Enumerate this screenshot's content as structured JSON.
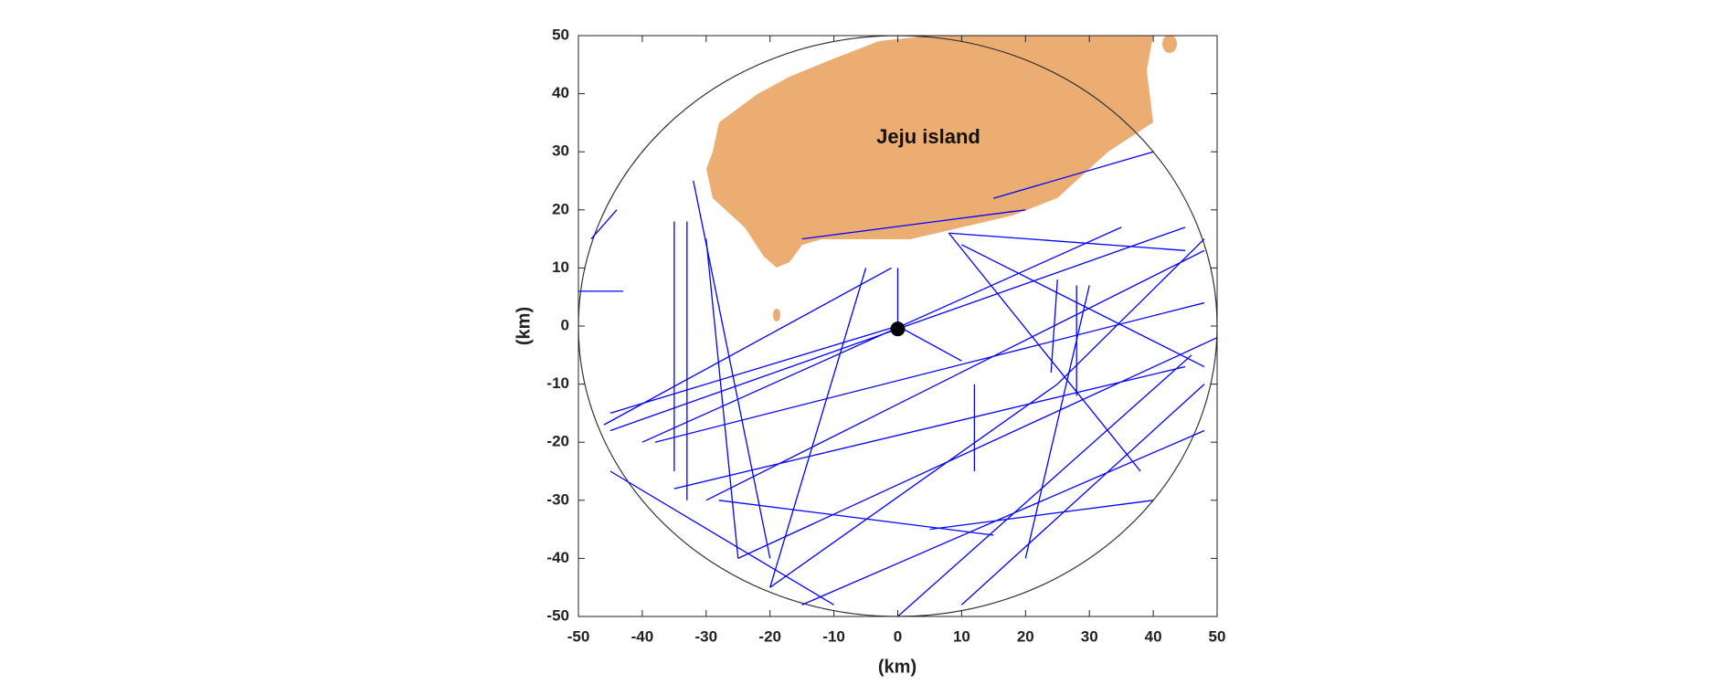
{
  "chart_data": {
    "type": "line",
    "xlabel": "(km)",
    "ylabel": "(km)",
    "annotation": "Jeju island",
    "xlim": [
      -50,
      50
    ],
    "ylim": [
      -50,
      50
    ],
    "xticks": [
      -50,
      -40,
      -30,
      -20,
      -10,
      0,
      10,
      20,
      30,
      40,
      50
    ],
    "yticks": [
      -50,
      -40,
      -30,
      -20,
      -10,
      0,
      10,
      20,
      30,
      40,
      50
    ],
    "radar": {
      "x": 0,
      "y": -0.5
    },
    "series": [
      {
        "color": "#0000ff",
        "x": [
          -46,
          -1
        ],
        "values": [
          -17,
          10
        ]
      },
      {
        "color": "#0000ff",
        "x": [
          -45,
          45
        ],
        "values": [
          -18,
          17
        ]
      },
      {
        "color": "#0000ff",
        "x": [
          -38,
          48
        ],
        "values": [
          -20,
          4
        ]
      },
      {
        "color": "#0000ff",
        "x": [
          -30,
          48
        ],
        "values": [
          -30,
          13
        ]
      },
      {
        "color": "#0000ff",
        "x": [
          -35,
          45
        ],
        "values": [
          -28,
          -7
        ]
      },
      {
        "color": "#0000ff",
        "x": [
          -25,
          50
        ],
        "values": [
          -40,
          -2
        ]
      },
      {
        "color": "#0000ff",
        "x": [
          -15,
          48
        ],
        "values": [
          -48,
          -18
        ]
      },
      {
        "color": "#0000ff",
        "x": [
          0,
          46
        ],
        "values": [
          -50,
          -5
        ]
      },
      {
        "color": "#0000ff",
        "x": [
          -20,
          25
        ],
        "values": [
          -45,
          -10
        ]
      },
      {
        "color": "#0000ff",
        "x": [
          8,
          38
        ],
        "values": [
          16,
          -25
        ]
      },
      {
        "color": "#0000ff",
        "x": [
          8,
          45
        ],
        "values": [
          16,
          13
        ]
      },
      {
        "color": "#0000ff",
        "x": [
          -32,
          -20
        ],
        "values": [
          25,
          -40
        ]
      },
      {
        "color": "#0000ff",
        "x": [
          -30,
          -25
        ],
        "values": [
          15,
          -40
        ]
      },
      {
        "color": "#0000ff",
        "x": [
          -33,
          -33
        ],
        "values": [
          18,
          -30
        ]
      },
      {
        "color": "#0000ff",
        "x": [
          -35,
          -35
        ],
        "values": [
          18,
          -25
        ]
      },
      {
        "color": "#0000ff",
        "x": [
          -5,
          -20
        ],
        "values": [
          10,
          -45
        ]
      },
      {
        "color": "#0000ff",
        "x": [
          0,
          0,
          10
        ],
        "values": [
          10,
          0,
          -6
        ]
      },
      {
        "color": "#0000ff",
        "x": [
          -45,
          0
        ],
        "values": [
          -15,
          0
        ]
      },
      {
        "color": "#0000ff",
        "x": [
          -40,
          35
        ],
        "values": [
          -20,
          17
        ]
      },
      {
        "color": "#0000ff",
        "x": [
          30,
          20
        ],
        "values": [
          7,
          -40
        ]
      },
      {
        "color": "#0000ff",
        "x": [
          28,
          28
        ],
        "values": [
          7,
          -12
        ]
      },
      {
        "color": "#0000ff",
        "x": [
          25,
          24
        ],
        "values": [
          8,
          -8
        ]
      },
      {
        "color": "#0000ff",
        "x": [
          -45,
          -10
        ],
        "values": [
          -25,
          -48
        ]
      },
      {
        "color": "#0000ff",
        "x": [
          48,
          10
        ],
        "values": [
          -10,
          -48
        ]
      },
      {
        "color": "#0000ff",
        "x": [
          48,
          25
        ],
        "values": [
          15,
          -10
        ]
      },
      {
        "color": "#0000ff",
        "x": [
          5,
          40
        ],
        "values": [
          -35,
          -30
        ]
      },
      {
        "color": "#0000ff",
        "x": [
          12,
          12
        ],
        "values": [
          -10,
          -25
        ]
      },
      {
        "color": "#0000ff",
        "x": [
          -50,
          -43
        ],
        "values": [
          6,
          6
        ]
      },
      {
        "color": "#0000ff",
        "x": [
          -48,
          -44
        ],
        "values": [
          15,
          20
        ]
      },
      {
        "color": "#0000ff",
        "x": [
          -15,
          20
        ],
        "values": [
          15,
          20
        ]
      },
      {
        "color": "#0000ff",
        "x": [
          15,
          40
        ],
        "values": [
          22,
          30
        ]
      },
      {
        "color": "#0000ff",
        "x": [
          10,
          48
        ],
        "values": [
          14,
          -7
        ]
      },
      {
        "color": "#0000ff",
        "x": [
          -28,
          15
        ],
        "values": [
          -30,
          -36
        ]
      }
    ]
  }
}
